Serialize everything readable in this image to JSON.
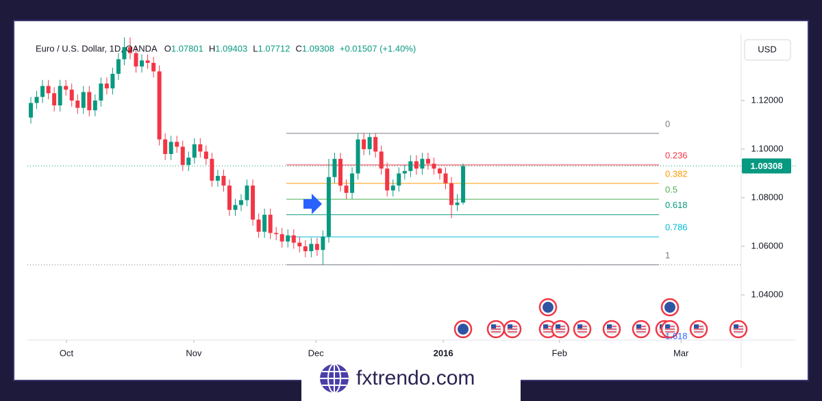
{
  "chart_data": {
    "type": "candlestick",
    "symbol": "Euro / U.S. Dollar, 1D, OANDA",
    "ohlc": {
      "O": 1.07801,
      "H": 1.09403,
      "L": 1.07712,
      "C": 1.09308
    },
    "change": "+0.01507 (+1.40%)",
    "currency": "USD",
    "up_color": "#089981",
    "down_color": "#f23645",
    "open": [
      1.113,
      1.119,
      1.1215,
      1.126,
      1.123,
      1.118,
      1.126,
      1.1245,
      1.12,
      1.117,
      1.1235,
      1.116,
      1.12,
      1.127,
      1.125,
      1.131,
      1.137,
      1.142,
      1.1395,
      1.134,
      1.1365,
      1.1355,
      1.132,
      1.104,
      1.098,
      1.103,
      1.101,
      1.0935,
      1.0965,
      1.102,
      1.099,
      1.096,
      1.087,
      1.089,
      1.085,
      1.075,
      1.077,
      1.079,
      1.085,
      1.071,
      1.066,
      1.073,
      1.0655,
      1.065,
      1.062,
      1.0645,
      1.0615,
      1.06,
      1.058,
      1.061,
      1.0585,
      1.064,
      1.0885,
      1.096,
      1.085,
      1.082,
      1.09,
      1.104,
      1.1,
      1.105,
      1.099,
      1.092,
      1.083,
      1.085,
      1.09,
      1.091,
      1.095,
      1.092,
      1.096,
      1.094,
      1.092,
      1.09,
      1.086,
      1.077,
      1.07801
    ],
    "high": [
      1.1215,
      1.124,
      1.1285,
      1.1285,
      1.1255,
      1.1285,
      1.1285,
      1.127,
      1.1225,
      1.126,
      1.126,
      1.1225,
      1.1295,
      1.1295,
      1.1335,
      1.1395,
      1.146,
      1.146,
      1.142,
      1.139,
      1.139,
      1.138,
      1.1345,
      1.1065,
      1.1055,
      1.1055,
      1.1035,
      1.099,
      1.1045,
      1.1045,
      1.1015,
      1.0985,
      1.0915,
      1.0915,
      1.0875,
      1.0795,
      1.0815,
      1.0875,
      1.0875,
      1.0735,
      1.0755,
      1.0755,
      1.068,
      1.0675,
      1.067,
      1.067,
      1.064,
      1.0625,
      1.0635,
      1.0635,
      1.0665,
      1.096,
      1.0985,
      1.0985,
      1.0875,
      1.0925,
      1.1065,
      1.1065,
      1.1065,
      1.1065,
      1.1015,
      1.0945,
      1.0875,
      1.0925,
      1.0935,
      1.0975,
      1.0975,
      1.0985,
      1.0985,
      1.0965,
      1.0925,
      1.0925,
      1.0885,
      1.0815,
      1.09403
    ],
    "low": [
      1.1105,
      1.1165,
      1.119,
      1.1205,
      1.1155,
      1.1155,
      1.122,
      1.1175,
      1.1145,
      1.1145,
      1.1135,
      1.1135,
      1.1175,
      1.1225,
      1.1225,
      1.1285,
      1.1345,
      1.137,
      1.1315,
      1.1315,
      1.133,
      1.1295,
      1.1015,
      1.0955,
      1.0955,
      1.0985,
      1.091,
      1.091,
      1.094,
      1.0965,
      1.0935,
      1.0845,
      1.0845,
      1.0825,
      1.0725,
      1.0725,
      1.0745,
      1.0765,
      1.0685,
      1.0635,
      1.0635,
      1.063,
      1.0625,
      1.0595,
      1.0595,
      1.059,
      1.0575,
      1.0555,
      1.0555,
      1.056,
      1.0524,
      1.0615,
      1.086,
      1.0825,
      1.0795,
      1.0795,
      1.0875,
      1.0975,
      1.0975,
      1.0965,
      1.0895,
      1.0805,
      1.0805,
      1.0825,
      1.0875,
      1.0885,
      1.0895,
      1.0895,
      1.0915,
      1.0895,
      1.0875,
      1.0835,
      1.0715,
      1.0745,
      1.07712
    ],
    "close": [
      1.119,
      1.1215,
      1.126,
      1.123,
      1.118,
      1.126,
      1.1245,
      1.12,
      1.117,
      1.1235,
      1.116,
      1.12,
      1.127,
      1.125,
      1.131,
      1.137,
      1.142,
      1.1395,
      1.134,
      1.1365,
      1.1355,
      1.132,
      1.104,
      1.098,
      1.103,
      1.101,
      1.0935,
      1.0965,
      1.102,
      1.099,
      1.096,
      1.087,
      1.089,
      1.085,
      1.075,
      1.077,
      1.079,
      1.085,
      1.071,
      1.066,
      1.073,
      1.0655,
      1.065,
      1.062,
      1.0645,
      1.0615,
      1.06,
      1.058,
      1.061,
      1.0585,
      1.064,
      1.0885,
      1.096,
      1.085,
      1.082,
      1.09,
      1.104,
      1.1,
      1.105,
      1.099,
      1.092,
      1.083,
      1.085,
      1.09,
      1.091,
      1.095,
      1.092,
      1.096,
      1.094,
      1.092,
      1.09,
      1.086,
      1.077,
      1.078,
      1.09308
    ],
    "xlim": [
      -0.59,
      121.6
    ],
    "xticks": [
      {
        "value": 6.1,
        "label": "Oct"
      },
      {
        "value": 27.9,
        "label": "Nov"
      },
      {
        "value": 48.8,
        "label": "Dec"
      },
      {
        "value": 70.6,
        "label": "2016"
      },
      {
        "value": 90.5,
        "label": "Feb"
      },
      {
        "value": 111.3,
        "label": "Mar"
      }
    ],
    "ylim": [
      1.0214,
      1.1473
    ],
    "yticks": [
      {
        "value": 1.04,
        "label": "1.04000"
      },
      {
        "value": 1.06,
        "label": "1.06000"
      },
      {
        "value": 1.08,
        "label": "1.08000"
      },
      {
        "value": 1.1,
        "label": "1.10000"
      },
      {
        "value": 1.12,
        "label": "1.12000"
      }
    ],
    "fib": [
      {
        "ratio": 0,
        "price": 1.1065,
        "color": "#787b86"
      },
      {
        "ratio": 0.236,
        "price": 1.0935,
        "color": "#f23645"
      },
      {
        "ratio": 0.382,
        "price": 1.0859,
        "color": "#ff9800"
      },
      {
        "ratio": 0.5,
        "price": 1.0794,
        "color": "#4caf50"
      },
      {
        "ratio": 0.618,
        "price": 1.073,
        "color": "#089981"
      },
      {
        "ratio": 0.786,
        "price": 1.0639,
        "color": "#00bcd4"
      },
      {
        "ratio": 1,
        "price": 1.0524,
        "color": "#787b86"
      },
      {
        "ratio": 1.618,
        "price": 1.019,
        "color": "#2962ff"
      }
    ]
  },
  "brand": "fxtrendo.com"
}
